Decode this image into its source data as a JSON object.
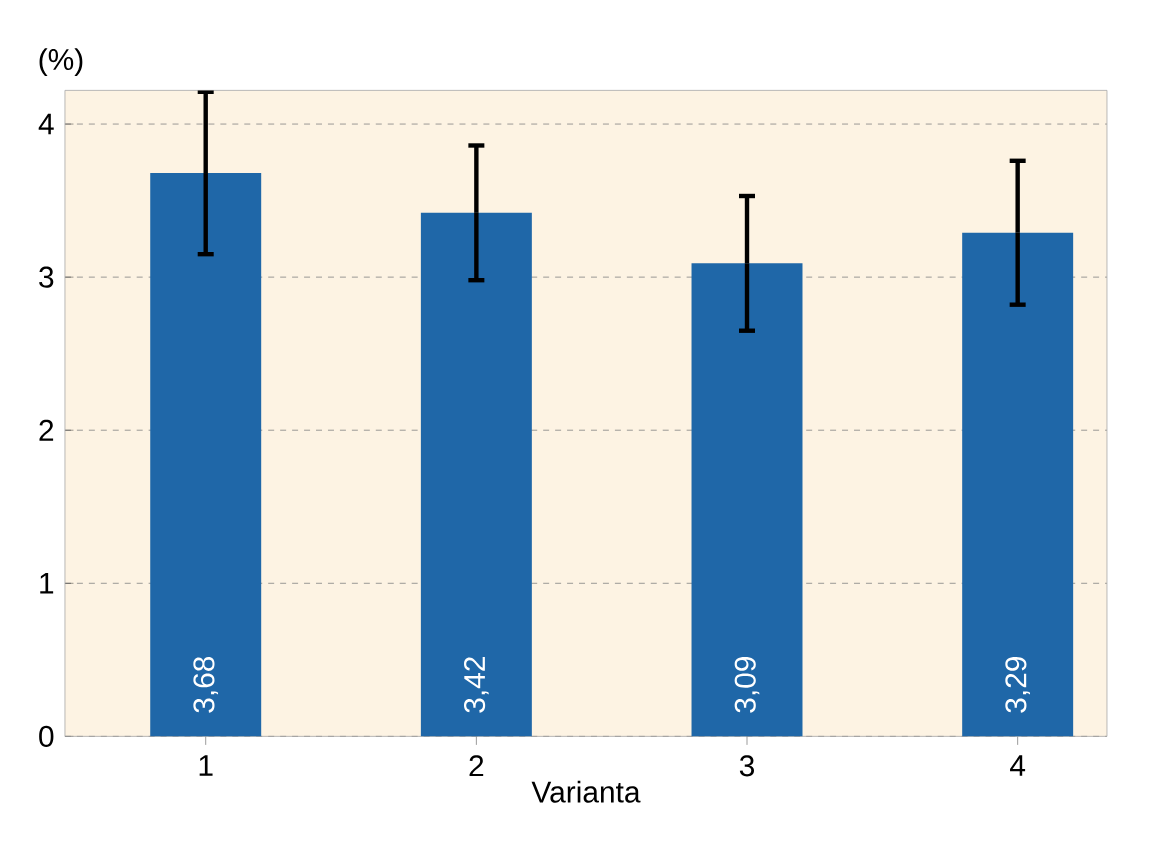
{
  "chart_data": {
    "type": "bar",
    "xlabel": "Varianta",
    "ylabel": "(%)",
    "categories": [
      "1",
      "2",
      "3",
      "4"
    ],
    "values": [
      3.68,
      3.42,
      3.09,
      3.29
    ],
    "value_labels": [
      "3,68",
      "3,42",
      "3,09",
      "3,29"
    ],
    "errors": [
      0.53,
      0.44,
      0.44,
      0.47
    ],
    "color": "#1f67a8",
    "ylim": [
      0,
      4.22
    ],
    "yticks": [
      0,
      1,
      2,
      3,
      4
    ],
    "grid": "y"
  }
}
